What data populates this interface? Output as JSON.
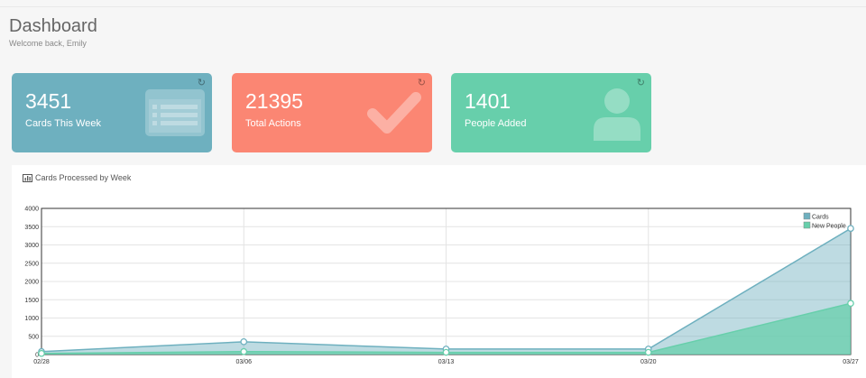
{
  "header": {
    "title": "Dashboard",
    "subtitle": "Welcome back, Emily"
  },
  "stats": [
    {
      "value": "3451",
      "label": "Cards This Week",
      "icon": "card-icon",
      "color": "#6eb0bf"
    },
    {
      "value": "21395",
      "label": "Total Actions",
      "icon": "checkmark-icon",
      "color": "#fb8673"
    },
    {
      "value": "1401",
      "label": "People Added",
      "icon": "user-icon",
      "color": "#67cfab"
    }
  ],
  "panel": {
    "title": "Cards Processed by Week",
    "icon": "bar-chart-icon"
  },
  "chart_data": {
    "type": "area",
    "x": [
      "02/28",
      "03/06",
      "03/13",
      "03/20",
      "03/27"
    ],
    "series": [
      {
        "name": "Cards",
        "values": [
          80,
          350,
          150,
          150,
          3451
        ],
        "color": "#6eb0bf"
      },
      {
        "name": "New People",
        "values": [
          30,
          80,
          60,
          60,
          1401
        ],
        "color": "#67cfab"
      }
    ],
    "ylim": [
      0,
      4000
    ],
    "yticks": [
      0,
      500,
      1000,
      1500,
      2000,
      2500,
      3000,
      3500,
      4000
    ],
    "grid": true,
    "legend": "top-right"
  }
}
